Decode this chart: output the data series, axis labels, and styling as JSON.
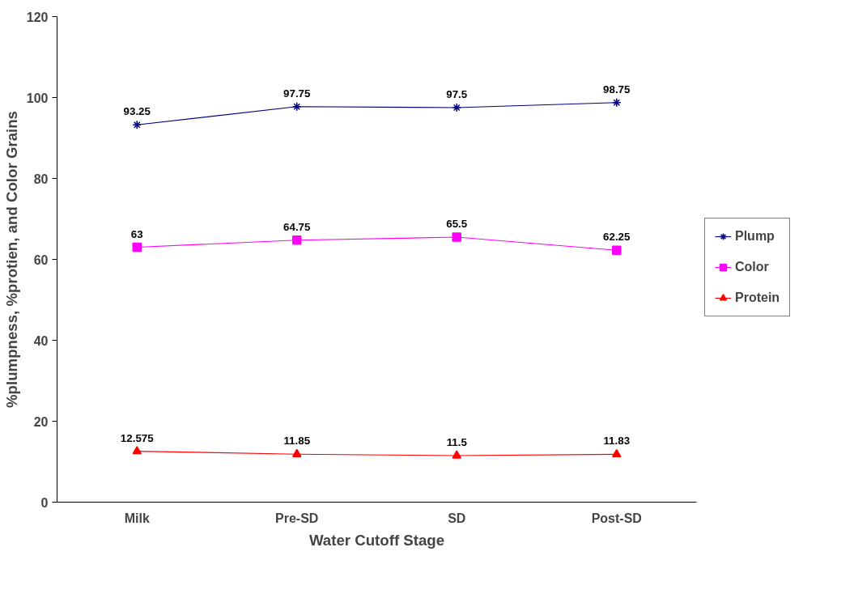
{
  "chart_data": {
    "type": "line",
    "xlabel": "Water Cutoff Stage",
    "ylabel": "%plumpness, %protien, and Color Grains",
    "categories": [
      "Milk",
      "Pre-SD",
      "SD",
      "Post-SD"
    ],
    "series": [
      {
        "name": "Plump",
        "color": "#000080",
        "marker": "cross",
        "values": [
          93.25,
          97.75,
          97.5,
          98.75
        ]
      },
      {
        "name": "Color",
        "color": "#ff00ff",
        "marker": "square",
        "values": [
          63,
          64.75,
          65.5,
          62.25
        ]
      },
      {
        "name": "Protein",
        "color": "#ff0000",
        "marker": "triangle",
        "values": [
          12.575,
          11.85,
          11.5,
          11.83
        ]
      }
    ],
    "ylim": [
      0,
      120
    ],
    "yticks": [
      0,
      20,
      40,
      60,
      80,
      100,
      120
    ],
    "data_labels": true,
    "legend": "right",
    "grid": false
  }
}
